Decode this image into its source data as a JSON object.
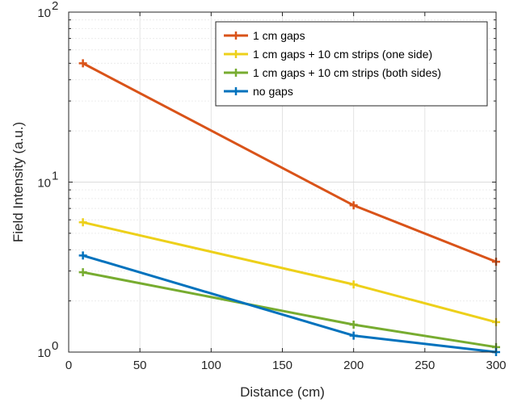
{
  "chart_data": {
    "type": "line",
    "xlabel": "Distance (cm)",
    "ylabel": "Field Intensity (a.u.)",
    "xlim": [
      0,
      300
    ],
    "ylim": [
      1,
      100
    ],
    "yscale": "log",
    "grid": true,
    "legend_position": "top-right",
    "x_ticks": [
      "0",
      "50",
      "100",
      "150",
      "200",
      "250",
      "300"
    ],
    "x_tick_values": [
      0,
      50,
      100,
      150,
      200,
      250,
      300
    ],
    "y_ticks": [
      {
        "value": 1,
        "base": "10",
        "exp": "0"
      },
      {
        "value": 10,
        "base": "10",
        "exp": "1"
      },
      {
        "value": 100,
        "base": "10",
        "exp": "2"
      }
    ],
    "x": [
      10,
      200,
      300
    ],
    "series": [
      {
        "name": "1 cm gaps",
        "color": "#D95319",
        "values": [
          50,
          7.3,
          3.4
        ]
      },
      {
        "name": "1 cm gaps + 10 cm strips (one side)",
        "color": "#EDD01A",
        "values": [
          5.8,
          2.5,
          1.5
        ]
      },
      {
        "name": "1 cm gaps + 10 cm strips (both sides)",
        "color": "#77AC30",
        "values": [
          2.95,
          1.45,
          1.07
        ]
      },
      {
        "name": "no gaps",
        "color": "#0072BD",
        "values": [
          3.7,
          1.25,
          1.0
        ]
      }
    ]
  }
}
